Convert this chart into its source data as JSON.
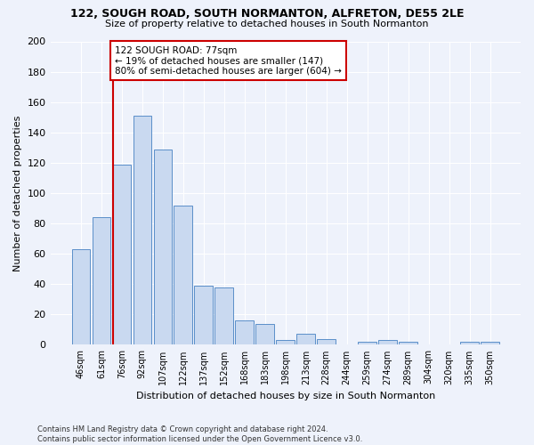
{
  "title1": "122, SOUGH ROAD, SOUTH NORMANTON, ALFRETON, DE55 2LE",
  "title2": "Size of property relative to detached houses in South Normanton",
  "xlabel": "Distribution of detached houses by size in South Normanton",
  "ylabel": "Number of detached properties",
  "footnote": "Contains HM Land Registry data © Crown copyright and database right 2024.\nContains public sector information licensed under the Open Government Licence v3.0.",
  "categories": [
    "46sqm",
    "61sqm",
    "76sqm",
    "92sqm",
    "107sqm",
    "122sqm",
    "137sqm",
    "152sqm",
    "168sqm",
    "183sqm",
    "198sqm",
    "213sqm",
    "228sqm",
    "244sqm",
    "259sqm",
    "274sqm",
    "289sqm",
    "304sqm",
    "320sqm",
    "335sqm",
    "350sqm"
  ],
  "values": [
    63,
    84,
    119,
    151,
    129,
    92,
    39,
    38,
    16,
    14,
    3,
    7,
    4,
    0,
    2,
    3,
    2,
    0,
    0,
    2,
    2
  ],
  "bar_color": "#c9d9f0",
  "bar_edge_color": "#5b8fc9",
  "highlight_line_color": "#cc0000",
  "annotation_line1": "122 SOUGH ROAD: 77sqm",
  "annotation_line2": "← 19% of detached houses are smaller (147)",
  "annotation_line3": "80% of semi-detached houses are larger (604) →",
  "annotation_box_color": "#cc0000",
  "background_color": "#eef2fb",
  "ylim": [
    0,
    200
  ],
  "yticks": [
    0,
    20,
    40,
    60,
    80,
    100,
    120,
    140,
    160,
    180,
    200
  ]
}
